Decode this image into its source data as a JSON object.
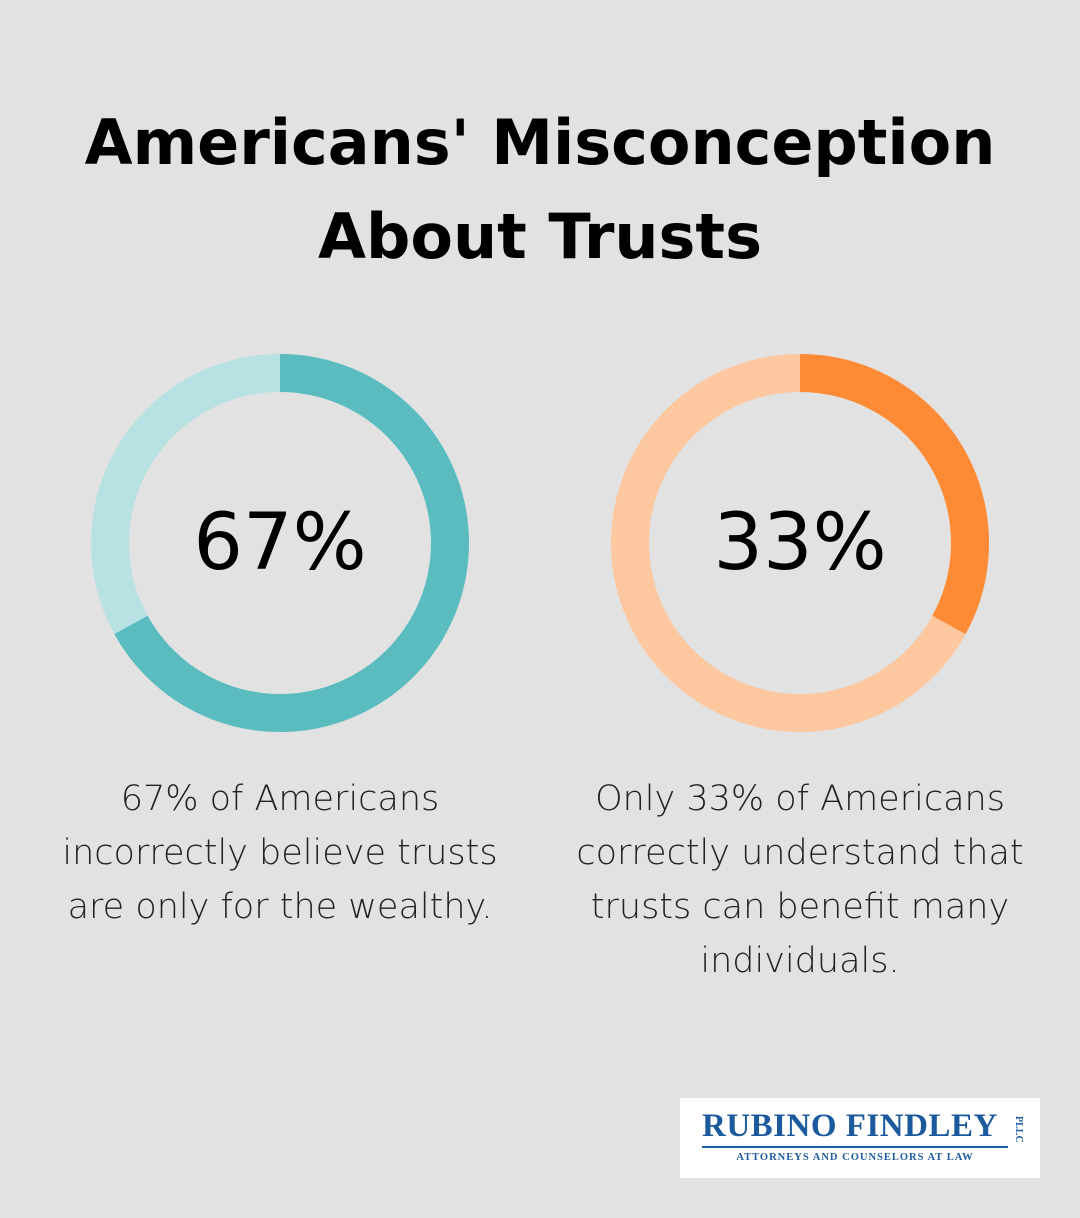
{
  "title": {
    "line1": "Americans' Misconception",
    "line2": "About Trusts"
  },
  "chart_data": [
    {
      "type": "pie",
      "values": [
        67,
        33
      ],
      "label": "67%",
      "caption": "67% of Americans incorrectly believe trusts are only for the wealthy.",
      "colors": {
        "main": "#5bbcc0",
        "track": "#b8e1e3"
      }
    },
    {
      "type": "pie",
      "values": [
        33,
        67
      ],
      "label": "33%",
      "caption": "Only 33% of Americans correctly understand that trusts can benefit many individuals.",
      "colors": {
        "main": "#fd8a34",
        "track": "#fdc89f"
      }
    }
  ],
  "logo": {
    "name": "RUBINO FINDLEY",
    "subtitle": "ATTORNEYS AND COUNSELORS AT LAW",
    "suffix": "PLLC"
  }
}
